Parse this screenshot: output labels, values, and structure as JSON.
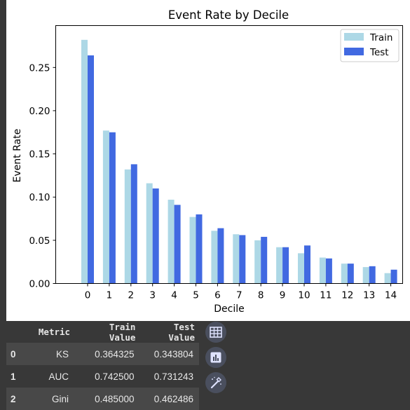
{
  "chart_data": {
    "type": "bar",
    "title": "Event Rate by Decile",
    "xlabel": "Decile",
    "ylabel": "Event Rate",
    "categories": [
      "0",
      "1",
      "2",
      "3",
      "4",
      "5",
      "6",
      "7",
      "8",
      "9",
      "10",
      "11",
      "12",
      "13",
      "14"
    ],
    "ylim": [
      0,
      0.2985
    ],
    "yticks": [
      "0.00",
      "0.05",
      "0.10",
      "0.15",
      "0.20",
      "0.25"
    ],
    "ytick_values": [
      0,
      0.05,
      0.1,
      0.15,
      0.2,
      0.25
    ],
    "legend_position": "top-right",
    "grid": false,
    "series": [
      {
        "name": "Train",
        "color": "#add8e6",
        "values": [
          0.282,
          0.177,
          0.132,
          0.116,
          0.097,
          0.077,
          0.061,
          0.057,
          0.05,
          0.042,
          0.035,
          0.03,
          0.023,
          0.019,
          0.012
        ]
      },
      {
        "name": "Test",
        "color": "#4169e1",
        "values": [
          0.264,
          0.175,
          0.138,
          0.11,
          0.091,
          0.08,
          0.064,
          0.056,
          0.054,
          0.042,
          0.044,
          0.029,
          0.023,
          0.02,
          0.016
        ]
      }
    ]
  },
  "dataframe": {
    "columns": [
      "Metric",
      "Train Value",
      "Test Value"
    ],
    "rows": [
      {
        "index": "0",
        "metric": "KS",
        "train": "0.364325",
        "test": "0.343804"
      },
      {
        "index": "1",
        "metric": "AUC",
        "train": "0.742500",
        "test": "0.731243"
      },
      {
        "index": "2",
        "metric": "Gini",
        "train": "0.485000",
        "test": "0.462486"
      }
    ]
  },
  "toolbar": {
    "icons": [
      "table-icon",
      "bar-chart-icon",
      "magic-wand-icon"
    ]
  }
}
